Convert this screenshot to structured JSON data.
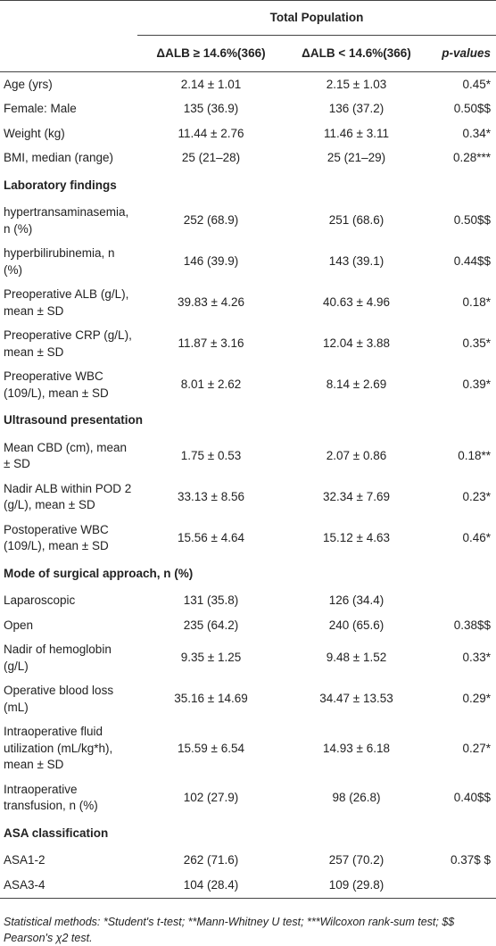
{
  "table": {
    "group_header": "Total Population",
    "columns": [
      "ΔALB ≥ 14.6%(366)",
      "ΔALB < 14.6%(366)",
      "p-values"
    ],
    "rows": [
      {
        "cells": [
          "Age (yrs)",
          "2.14 ± 1.01",
          "2.15 ± 1.03",
          "0.45*"
        ]
      },
      {
        "cells": [
          "Female: Male",
          "135 (36.9)",
          "136 (37.2)",
          "0.50$$"
        ]
      },
      {
        "cells": [
          "Weight (kg)",
          "11.44 ± 2.76",
          "11.46 ± 3.11",
          "0.34*"
        ]
      },
      {
        "cells": [
          "BMI, median (range)",
          "25 (21–28)",
          "25 (21–29)",
          "0.28***"
        ]
      },
      {
        "section": "Laboratory findings"
      },
      {
        "cells": [
          "hypertransaminasemia, n (%)",
          "252 (68.9)",
          "251 (68.6)",
          "0.50$$"
        ]
      },
      {
        "cells": [
          "hyperbilirubinemia, n (%)",
          "146 (39.9)",
          "143 (39.1)",
          "0.44$$"
        ]
      },
      {
        "cells": [
          "Preoperative ALB (g/L), mean ± SD",
          "39.83 ± 4.26",
          "40.63 ± 4.96",
          "0.18*"
        ]
      },
      {
        "cells": [
          "Preoperative CRP (g/L), mean ± SD",
          "11.87 ± 3.16",
          "12.04 ± 3.88",
          "0.35*"
        ]
      },
      {
        "cells": [
          "Preoperative WBC (109/L), mean ± SD",
          "8.01 ± 2.62",
          "8.14 ± 2.69",
          "0.39*"
        ]
      },
      {
        "section": "Ultrasound presentation"
      },
      {
        "cells": [
          "Mean CBD (cm), mean ± SD",
          "1.75 ± 0.53",
          "2.07 ± 0.86",
          "0.18**"
        ]
      },
      {
        "cells": [
          "Nadir ALB within POD 2 (g/L), mean ± SD",
          "33.13 ± 8.56",
          "32.34 ± 7.69",
          "0.23*"
        ]
      },
      {
        "cells": [
          "Postoperative WBC (109/L), mean ± SD",
          "15.56 ± 4.64",
          "15.12 ± 4.63",
          "0.46*"
        ]
      },
      {
        "section": "Mode of surgical approach, n (%)"
      },
      {
        "cells": [
          "Laparoscopic",
          "131 (35.8)",
          "126 (34.4)",
          null
        ]
      },
      {
        "cells": [
          "Open",
          "235 (64.2)",
          "240 (65.6)",
          "0.38$$"
        ]
      },
      {
        "cells": [
          "Nadir of hemoglobin (g/L)",
          "9.35 ± 1.25",
          "9.48 ± 1.52",
          "0.33*"
        ]
      },
      {
        "cells": [
          "Operative blood loss (mL)",
          "35.16 ± 14.69",
          "34.47 ± 13.53",
          "0.29*"
        ]
      },
      {
        "cells": [
          "Intraoperative fluid utilization (mL/kg*h), mean ± SD",
          "15.59 ± 6.54",
          "14.93 ± 6.18",
          "0.27*"
        ]
      },
      {
        "cells": [
          "Intraoperative transfusion, n (%)",
          "102 (27.9)",
          "98 (26.8)",
          "0.40$$"
        ]
      },
      {
        "section": "ASA classification"
      },
      {
        "cells": [
          "ASA1-2",
          "262 (71.6)",
          "257 (70.2)",
          "0.37$ $"
        ]
      },
      {
        "cells": [
          "ASA3-4",
          "104 (28.4)",
          "109 (29.8)",
          null
        ]
      }
    ],
    "footnote": "Statistical methods: *Student's t-test; **Mann-Whitney U test; ***Wilcoxon rank-sum test; $$ Pearson's χ2 test."
  }
}
